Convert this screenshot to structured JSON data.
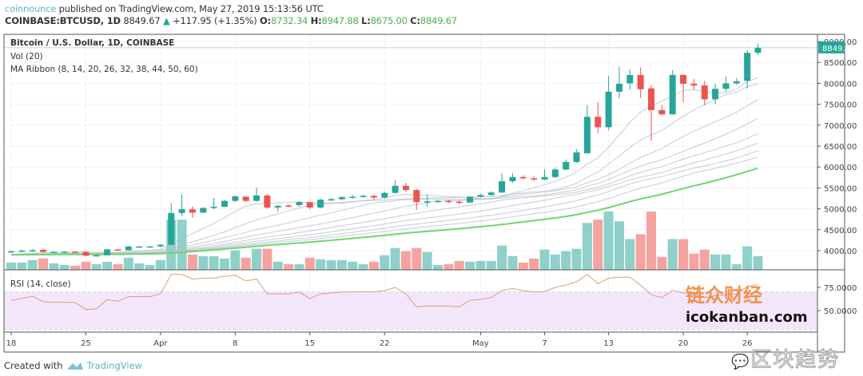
{
  "header": {
    "author": "coinnounce",
    "published": "published on TradingView.com, May 27, 2019 15:13:56 UTC",
    "symbol": "COINBASE:BTCUSD, 1D",
    "last": "8849.67",
    "change": "+117.95 (+1.35%)",
    "o_label": "O:",
    "o": "8732.34",
    "h_label": "H:",
    "h": "8947.88",
    "l_label": "L:",
    "l": "8675.00",
    "c_label": "C:",
    "c": "8849.67"
  },
  "legend": {
    "title": "Bitcoin / U.S. Dollar, 1D, COINBASE",
    "vol": "Vol (20)",
    "ma": "MA Ribbon (8, 14, 20, 26, 32, 38, 44, 50, 60)",
    "rsi": "RSI (14, close)"
  },
  "footer": {
    "created": "Created with",
    "brand": "TradingView"
  },
  "watermarks": {
    "cn1": "链众财经",
    "site": "icokanban.com",
    "cn2": "区块趋势"
  },
  "colors": {
    "up": "#26a69a",
    "down": "#ef5350",
    "vol_up": "#8fd0ca",
    "vol_down": "#f5a3a1",
    "ma": "#b8bec8",
    "ma60": "#6fd66f",
    "rsi": "#d4a27a",
    "rsi_band": "#f3e6fb"
  },
  "chart_data": [
    {
      "type": "candlestick",
      "title": "Bitcoin / U.S. Dollar, 1D, COINBASE",
      "ylim": [
        3600,
        9100
      ],
      "y_ticks": [
        "4000.00",
        "4500.00",
        "5000.00",
        "5500.00",
        "6000.00",
        "6500.00",
        "7000.00",
        "7500.00",
        "8000.00",
        "8500.00",
        "9000.00"
      ],
      "last_price_label": "8849.67",
      "x_tick_labels": [
        {
          "label": "18",
          "date": "2019-03-18"
        },
        {
          "label": "25",
          "date": "2019-03-25"
        },
        {
          "label": "Apr",
          "date": "2019-04-01"
        },
        {
          "label": "8",
          "date": "2019-04-08"
        },
        {
          "label": "15",
          "date": "2019-04-15"
        },
        {
          "label": "22",
          "date": "2019-04-22"
        },
        {
          "label": "May",
          "date": "2019-05-01"
        },
        {
          "label": "7",
          "date": "2019-05-07"
        },
        {
          "label": "13",
          "date": "2019-05-13"
        },
        {
          "label": "20",
          "date": "2019-05-20"
        },
        {
          "label": "26",
          "date": "2019-05-26"
        }
      ],
      "start_date": "2019-03-18",
      "ohlc": [
        [
          3980,
          4010,
          3960,
          3985
        ],
        [
          3985,
          4030,
          3975,
          4000
        ],
        [
          4000,
          4040,
          3990,
          4010
        ],
        [
          4020,
          4050,
          3955,
          3970
        ],
        [
          3970,
          3990,
          3950,
          3972
        ],
        [
          3972,
          3990,
          3960,
          3975
        ],
        [
          3975,
          3985,
          3950,
          3965
        ],
        [
          3970,
          3980,
          3860,
          3880
        ],
        [
          3880,
          3910,
          3870,
          3890
        ],
        [
          3890,
          4050,
          3885,
          4030
        ],
        [
          4030,
          4045,
          4000,
          4010
        ],
        [
          4010,
          4120,
          4000,
          4100
        ],
        [
          4100,
          4115,
          4080,
          4100
        ],
        [
          4100,
          4110,
          4085,
          4102
        ],
        [
          4102,
          4160,
          4080,
          4140
        ],
        [
          4140,
          5140,
          4130,
          4900
        ],
        [
          4900,
          5350,
          4820,
          4990
        ],
        [
          4990,
          5060,
          4790,
          4910
        ],
        [
          4910,
          5040,
          4890,
          5020
        ],
        [
          5020,
          5260,
          4990,
          5050
        ],
        [
          5050,
          5220,
          5040,
          5190
        ],
        [
          5190,
          5320,
          5160,
          5300
        ],
        [
          5290,
          5310,
          5160,
          5190
        ],
        [
          5190,
          5510,
          5170,
          5320
        ],
        [
          5320,
          5350,
          5000,
          5030
        ],
        [
          5030,
          5100,
          4930,
          5070
        ],
        [
          5080,
          5110,
          5040,
          5070
        ],
        [
          5090,
          5170,
          5050,
          5160
        ],
        [
          5160,
          5180,
          4990,
          5030
        ],
        [
          5030,
          5240,
          5010,
          5220
        ],
        [
          5220,
          5260,
          5190,
          5230
        ],
        [
          5230,
          5300,
          5200,
          5280
        ],
        [
          5280,
          5330,
          5240,
          5290
        ],
        [
          5290,
          5340,
          5270,
          5310
        ],
        [
          5310,
          5340,
          5220,
          5270
        ],
        [
          5270,
          5410,
          5250,
          5380
        ],
        [
          5380,
          5680,
          5370,
          5550
        ],
        [
          5550,
          5620,
          5400,
          5450
        ],
        [
          5450,
          5480,
          4980,
          5160
        ],
        [
          5160,
          5350,
          5050,
          5180
        ],
        [
          5180,
          5220,
          5150,
          5190
        ],
        [
          5190,
          5220,
          5140,
          5170
        ],
        [
          5170,
          5200,
          5110,
          5150
        ],
        [
          5150,
          5310,
          5140,
          5290
        ],
        [
          5290,
          5360,
          5270,
          5330
        ],
        [
          5330,
          5420,
          5310,
          5390
        ],
        [
          5390,
          5850,
          5380,
          5660
        ],
        [
          5660,
          5860,
          5620,
          5760
        ],
        [
          5760,
          5800,
          5700,
          5730
        ],
        [
          5730,
          5780,
          5660,
          5700
        ],
        [
          5700,
          5950,
          5690,
          5760
        ],
        [
          5760,
          5990,
          5740,
          5940
        ],
        [
          5940,
          6180,
          5920,
          6120
        ],
        [
          6120,
          6430,
          6100,
          6350
        ],
        [
          6330,
          7480,
          6320,
          7200
        ],
        [
          7200,
          7560,
          6800,
          6950
        ],
        [
          6950,
          8180,
          6880,
          7800
        ],
        [
          7800,
          8400,
          7640,
          7990
        ],
        [
          8000,
          8340,
          7850,
          8200
        ],
        [
          8200,
          8380,
          7650,
          7860
        ],
        [
          7880,
          7960,
          6630,
          7360
        ],
        [
          7360,
          7480,
          7230,
          7260
        ],
        [
          7260,
          8320,
          7250,
          8200
        ],
        [
          8200,
          8220,
          7550,
          7990
        ],
        [
          7990,
          8100,
          7850,
          7950
        ],
        [
          7950,
          8060,
          7480,
          7620
        ],
        [
          7620,
          7980,
          7510,
          7870
        ],
        [
          7870,
          8160,
          7800,
          8000
        ],
        [
          8000,
          8130,
          7960,
          8050
        ],
        [
          8060,
          8800,
          7880,
          8730
        ],
        [
          8732.34,
          8947.88,
          8675.0,
          8849.67
        ]
      ]
    },
    {
      "type": "bar",
      "title": "Vol (20)",
      "volume_relative": [
        9,
        9,
        12,
        14,
        8,
        6,
        5,
        10,
        7,
        10,
        7,
        15,
        8,
        6,
        12,
        62,
        62,
        19,
        17,
        17,
        14,
        24,
        15,
        26,
        26,
        10,
        7,
        7,
        15,
        13,
        12,
        12,
        10,
        7,
        10,
        18,
        27,
        23,
        27,
        22,
        6,
        7,
        11,
        10,
        11,
        11,
        30,
        17,
        9,
        14,
        25,
        19,
        23,
        26,
        58,
        62,
        72,
        60,
        38,
        44,
        72,
        16,
        38,
        38,
        20,
        25,
        19,
        19,
        7,
        29,
        17
      ]
    },
    {
      "type": "line",
      "title": "RSI (14, close)",
      "ylim": [
        26,
        97
      ],
      "y_ticks": [
        "50.0000",
        "75.0000"
      ],
      "band": [
        30,
        70
      ],
      "values": [
        61,
        63,
        65.5,
        59.5,
        59,
        59,
        58.6,
        51,
        52,
        62,
        60,
        65,
        65,
        65,
        68,
        89,
        89,
        84,
        85,
        85,
        87,
        88,
        82,
        84,
        68,
        68,
        68,
        70,
        63,
        68,
        69,
        70,
        70,
        70.5,
        70,
        71.5,
        75,
        68,
        54,
        55,
        55,
        55,
        54,
        61,
        62,
        64,
        71.5,
        74,
        71.5,
        70,
        70.5,
        75,
        77.5,
        81,
        89,
        79,
        85,
        86,
        86,
        77.5,
        67,
        64,
        72,
        69,
        68,
        64,
        66,
        67,
        68,
        76,
        78
      ]
    }
  ]
}
